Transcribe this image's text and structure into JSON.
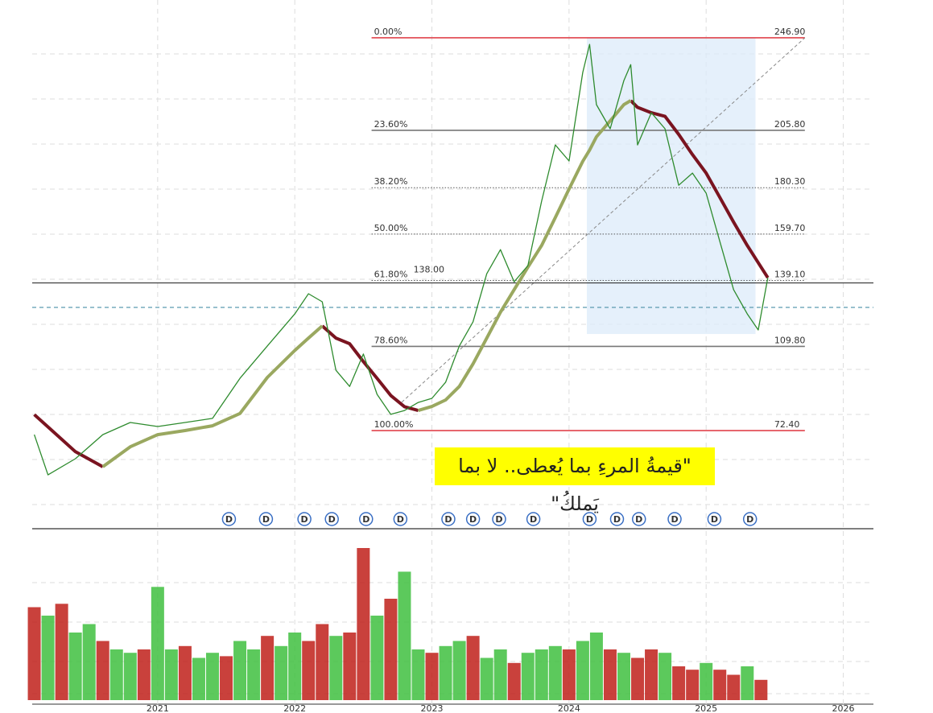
{
  "chart_data": {
    "type": "line",
    "xlim": [
      2020.085,
      2026.22
    ],
    "xticks": [
      2021,
      2022,
      2023,
      2024,
      2025,
      2026
    ],
    "ylim": [
      29.5,
      263.7
    ],
    "grid": true,
    "x": [
      2020.1,
      2020.2,
      2020.4,
      2020.6,
      2020.8,
      2021.0,
      2021.2,
      2021.4,
      2021.6,
      2021.8,
      2022.0,
      2022.1,
      2022.2,
      2022.3,
      2022.4,
      2022.5,
      2022.6,
      2022.7,
      2022.8,
      2022.9,
      2023.0,
      2023.1,
      2023.2,
      2023.3,
      2023.4,
      2023.5,
      2023.6,
      2023.7,
      2023.8,
      2023.9,
      2024.0,
      2024.1,
      2024.15,
      2024.2,
      2024.3,
      2024.4,
      2024.45,
      2024.5,
      2024.6,
      2024.7,
      2024.8,
      2024.9,
      2025.0,
      2025.1,
      2025.2,
      2025.3,
      2025.38,
      2025.45
    ],
    "series": [
      {
        "color": "#7a1420",
        "width": 4,
        "values": [
          79.5,
          74,
          63,
          56.3,
          null,
          null,
          null,
          null,
          null,
          null,
          null,
          null,
          118.9,
          113.5,
          111,
          103,
          95.6,
          88,
          83,
          81.3,
          null,
          null,
          null,
          null,
          null,
          null,
          null,
          null,
          null,
          null,
          null,
          null,
          null,
          null,
          null,
          null,
          219,
          216,
          213.6,
          212,
          204,
          195,
          186.8,
          176,
          165,
          154.6,
          147,
          140.3
        ]
      },
      {
        "color": "#9aa860",
        "width": 4,
        "values": [
          null,
          null,
          null,
          56.3,
          65.2,
          70.6,
          72.4,
          74.5,
          80,
          96,
          108,
          113.5,
          118.9,
          null,
          null,
          null,
          null,
          null,
          null,
          81.3,
          83.1,
          86,
          92,
          102,
          113.5,
          125,
          135,
          145,
          154.6,
          167,
          179.7,
          192,
          197,
          202.9,
          210,
          217.2,
          219,
          null,
          null,
          null,
          null,
          null,
          null,
          null,
          null,
          null,
          null,
          null
        ]
      },
      {
        "color": "#2e8b2e",
        "width": 1.3,
        "values": [
          70.6,
          52.7,
          59.9,
          70.6,
          76,
          74.2,
          76,
          77.8,
          95.6,
          110,
          124.2,
          133.2,
          129.6,
          99.2,
          92,
          106.4,
          88.5,
          79.6,
          81.3,
          84.9,
          86.7,
          93.9,
          110,
          120.7,
          142.1,
          152.8,
          138.5,
          145.7,
          174.3,
          199.3,
          192.2,
          231.5,
          244,
          217.2,
          206.5,
          227.9,
          235,
          199.3,
          213.6,
          206.5,
          181.4,
          186.8,
          177.9,
          156.4,
          135,
          124.2,
          117.1,
          140.3
        ]
      }
    ],
    "fib_range": [
      2022.56,
      2025.72
    ],
    "fib_levels": [
      {
        "ratio_label": "0.00%",
        "value": 246.9,
        "value_label": "246.90",
        "color": "#e0434b",
        "style": "solid"
      },
      {
        "ratio_label": "23.60%",
        "value": 205.8,
        "value_label": "205.80",
        "color": "#777777",
        "style": "solid"
      },
      {
        "ratio_label": "38.20%",
        "value": 180.3,
        "value_label": "180.30",
        "color": "#555555",
        "style": "dotted"
      },
      {
        "ratio_label": "50.00%",
        "value": 159.7,
        "value_label": "159.70",
        "color": "#555555",
        "style": "dotted"
      },
      {
        "ratio_label": "61.80%",
        "value": 139.1,
        "value_label": "139.10",
        "color": "#555555",
        "style": "dotted"
      },
      {
        "ratio_label": "78.60%",
        "value": 109.8,
        "value_label": "109.80",
        "color": "#777777",
        "style": "solid"
      },
      {
        "ratio_label": "100.00%",
        "value": 72.4,
        "value_label": "72.40",
        "color": "#e0434b",
        "style": "solid"
      }
    ],
    "reference_lines": [
      {
        "value": 138,
        "value_label": "138.00",
        "color": "#333333",
        "style": "solid"
      },
      {
        "value": 127.1,
        "color": "#5a9ab0",
        "style": "dashed"
      }
    ],
    "trend_line": {
      "x": [
        2022.78,
        2025.72
      ],
      "y": [
        85,
        246.9
      ]
    },
    "profile_box": {
      "x": [
        2024.13,
        2025.36
      ],
      "y": [
        115.3,
        246.9
      ]
    },
    "dividends": {
      "label": "D",
      "x": [
        2021.52,
        2021.79,
        2022.07,
        2022.27,
        2022.52,
        2022.77,
        2023.12,
        2023.3,
        2023.49,
        2023.74,
        2024.15,
        2024.35,
        2024.51,
        2024.77,
        2025.06,
        2025.32
      ]
    },
    "volume": {
      "ylim": [
        0,
        100
      ],
      "up_color": "#3fbf3f",
      "down_color": "#c0201a",
      "x": [
        2020.1,
        2020.2,
        2020.3,
        2020.4,
        2020.5,
        2020.6,
        2020.7,
        2020.8,
        2020.9,
        2021.0,
        2021.1,
        2021.2,
        2021.3,
        2021.4,
        2021.5,
        2021.6,
        2021.7,
        2021.8,
        2021.9,
        2022.0,
        2022.1,
        2022.2,
        2022.3,
        2022.4,
        2022.5,
        2022.6,
        2022.7,
        2022.8,
        2022.9,
        2023.0,
        2023.1,
        2023.2,
        2023.3,
        2023.4,
        2023.5,
        2023.6,
        2023.7,
        2023.8,
        2023.9,
        2024.0,
        2024.1,
        2024.2,
        2024.3,
        2024.4,
        2024.5,
        2024.6,
        2024.7,
        2024.8,
        2024.9,
        2025.0,
        2025.1,
        2025.2,
        2025.3,
        2025.4
      ],
      "values": [
        55,
        50,
        57,
        40,
        45,
        35,
        30,
        28,
        30,
        67,
        30,
        32,
        25,
        28,
        26,
        35,
        30,
        38,
        32,
        40,
        35,
        45,
        38,
        40,
        90,
        50,
        60,
        76,
        30,
        28,
        32,
        35,
        38,
        25,
        30,
        22,
        28,
        30,
        32,
        30,
        35,
        40,
        30,
        28,
        25,
        30,
        28,
        20,
        18,
        22,
        18,
        15,
        20,
        12
      ],
      "up": [
        false,
        true,
        false,
        true,
        true,
        false,
        true,
        true,
        false,
        true,
        true,
        false,
        true,
        true,
        false,
        true,
        true,
        false,
        true,
        true,
        false,
        false,
        true,
        false,
        false,
        true,
        false,
        true,
        true,
        false,
        true,
        true,
        false,
        true,
        true,
        false,
        true,
        true,
        true,
        false,
        true,
        true,
        false,
        true,
        false,
        false,
        true,
        false,
        false,
        true,
        false,
        false,
        true,
        false
      ]
    },
    "annotation": "\"قيمةُ المرءِ بما يُعطى.. لا بما يَملكُ\""
  }
}
